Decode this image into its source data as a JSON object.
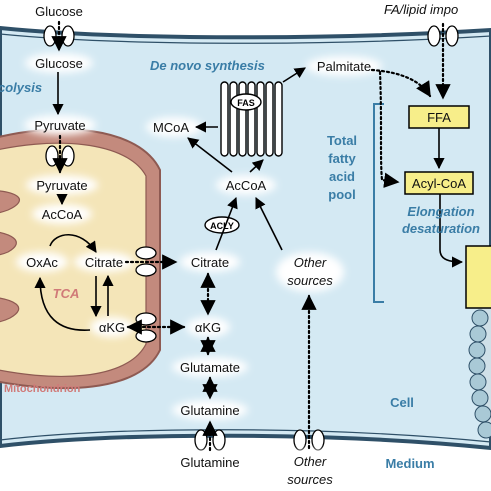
{
  "metabolites": {
    "glucose_out": "Glucose",
    "glucose_in": "Glucose",
    "pyruvate_cyto": "Pyruvate",
    "pyruvate_mito": "Pyruvate",
    "accoa_mito": "AcCoA",
    "oxac": "OxAc",
    "citrate_mito": "Citrate",
    "akg_mito": "αKG",
    "citrate_cyto": "Citrate",
    "akg_cyto": "αKG",
    "glutamate": "Glutamate",
    "glutamine_cell": "Glutamine",
    "glutamine_out": "Glutamine",
    "accoa_cyto": "AcCoA",
    "mcoa": "MCoA",
    "palmitate": "Palmitate",
    "ffa": "FFA",
    "acylcoa": "Acyl-CoA"
  },
  "enzymes": {
    "fas": "FAS",
    "acly": "ACLY"
  },
  "labels": {
    "glycolysis": "colysis",
    "de_novo": "De novo synthesis",
    "tca": "TCA",
    "mitochondrion": "Mitochondrion",
    "pool_line1": "Total",
    "pool_line2": "fatty",
    "pool_line3": "acid",
    "pool_line4": "pool",
    "elong_line1": "Elongation",
    "elong_line2": "desaturation",
    "cell": "Cell",
    "medium": "Medium",
    "other_cell_1": "Other",
    "other_cell_2": "sources",
    "other_med_1": "Other",
    "other_med_2": "sources",
    "fa_import": "FA/lipid impo"
  },
  "colors": {
    "cell_fill": "#d4e9f3",
    "membrane": "#2f5068",
    "mito_outer": "#c38a7d",
    "mito_matrix": "#f4e5b8",
    "mito_text": "#d07a78",
    "accent_blue": "#3a7da6",
    "box_yellow": "#f7ee8a",
    "glow": "#ffffff"
  }
}
